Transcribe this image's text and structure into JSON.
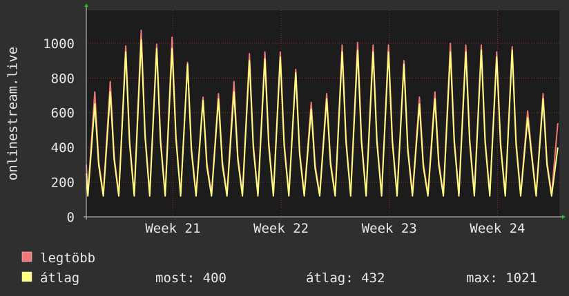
{
  "chart_data": {
    "type": "line",
    "y_label": "onlinestream.live",
    "x": [
      0,
      0.1,
      0.55,
      0.8,
      1.1,
      1.55,
      1.8,
      2.1,
      2.55,
      2.8,
      3.1,
      3.55,
      3.8,
      4.1,
      4.55,
      4.8,
      5.1,
      5.55,
      5.8,
      6.1,
      6.55,
      6.8,
      7.1,
      7.55,
      7.8,
      8.1,
      8.55,
      8.8,
      9.1,
      9.55,
      9.8,
      10.1,
      10.55,
      10.8,
      11.1,
      11.55,
      11.8,
      12.1,
      12.55,
      12.8,
      13.1,
      13.55,
      13.8,
      14.1,
      14.55,
      14.8,
      15.1,
      15.55,
      15.8,
      16.1,
      16.55,
      16.8,
      17.1,
      17.55,
      17.8,
      18.1,
      18.55,
      18.8,
      19.1,
      19.55,
      19.8,
      20.1,
      20.55,
      20.8,
      21.1,
      21.55,
      21.8,
      22.1,
      22.55,
      22.8,
      23.1,
      23.55,
      23.8,
      24.1,
      24.55,
      24.8,
      25.1,
      25.55,
      25.8,
      26.1,
      26.55,
      26.8,
      27.1,
      27.55,
      27.8,
      28.1,
      28.55,
      28.8,
      29.1,
      29.55,
      29.8,
      30.1,
      30.5
    ],
    "series": [
      {
        "name": "legtöbb",
        "color": "#f07878",
        "values": [
          300,
          130,
          720,
          320,
          130,
          780,
          350,
          130,
          985,
          440,
          130,
          1075,
          480,
          130,
          995,
          450,
          130,
          1035,
          470,
          130,
          890,
          400,
          130,
          690,
          310,
          130,
          710,
          320,
          130,
          780,
          350,
          130,
          940,
          420,
          130,
          950,
          430,
          130,
          950,
          430,
          130,
          850,
          380,
          130,
          660,
          300,
          130,
          710,
          320,
          130,
          990,
          450,
          130,
          1005,
          450,
          130,
          990,
          450,
          130,
          990,
          450,
          130,
          900,
          400,
          130,
          690,
          310,
          130,
          720,
          320,
          130,
          1000,
          450,
          130,
          990,
          450,
          130,
          990,
          450,
          130,
          950,
          430,
          130,
          980,
          440,
          130,
          610,
          380,
          130,
          710,
          320,
          130,
          540
        ]
      },
      {
        "name": "átlag",
        "color": "#ffff80",
        "values": [
          250,
          120,
          650,
          300,
          120,
          720,
          330,
          120,
          950,
          420,
          120,
          1020,
          460,
          120,
          970,
          430,
          120,
          970,
          450,
          120,
          880,
          380,
          120,
          670,
          290,
          120,
          680,
          300,
          120,
          720,
          330,
          120,
          900,
          400,
          120,
          910,
          410,
          120,
          920,
          410,
          120,
          830,
          360,
          120,
          620,
          280,
          120,
          680,
          300,
          120,
          950,
          430,
          120,
          960,
          430,
          120,
          950,
          430,
          120,
          950,
          430,
          120,
          880,
          380,
          120,
          650,
          290,
          120,
          680,
          300,
          120,
          950,
          430,
          120,
          950,
          430,
          120,
          960,
          430,
          120,
          920,
          410,
          120,
          960,
          420,
          120,
          570,
          360,
          120,
          680,
          300,
          120,
          400
        ]
      }
    ],
    "stats": [
      "most: 400",
      "átlag: 432",
      "max: 1021"
    ],
    "xlim": [
      0,
      30.6
    ],
    "xticks": [
      {
        "value": 5.6,
        "label": "Week 21"
      },
      {
        "value": 12.6,
        "label": "Week 22"
      },
      {
        "value": 19.6,
        "label": "Week 23"
      },
      {
        "value": 26.6,
        "label": "Week 24"
      }
    ],
    "ylim": [
      0,
      1190
    ],
    "yticks": [
      0,
      200,
      400,
      600,
      800,
      1000
    ],
    "grid": true
  }
}
